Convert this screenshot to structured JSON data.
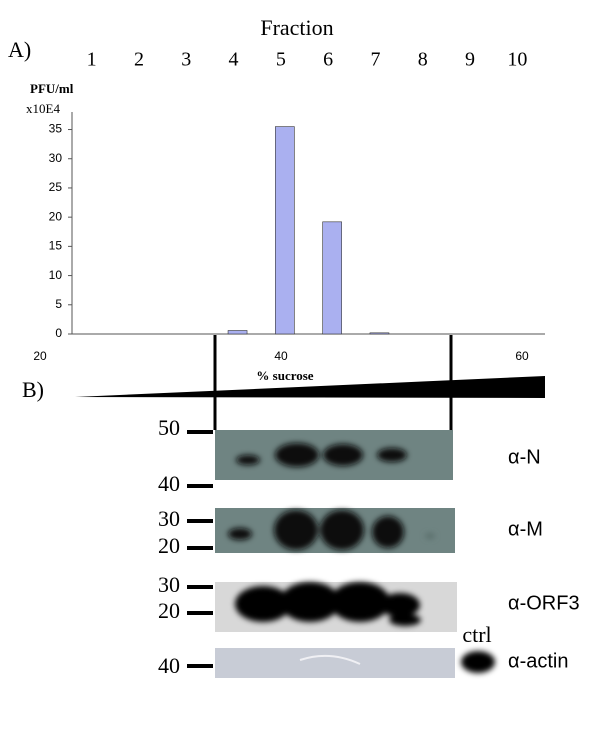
{
  "panel_a": {
    "label": "A)"
  },
  "chart_data": {
    "type": "bar",
    "x_title": "Fraction",
    "y_label": "PFU/ml",
    "y_unit": "x10E4",
    "x2_label": "% sucrose",
    "categories": [
      "1",
      "2",
      "3",
      "4",
      "5",
      "6",
      "7",
      "8",
      "9",
      "10"
    ],
    "values": [
      0,
      0,
      0,
      0.6,
      35.5,
      19.2,
      0.2,
      0,
      0,
      0
    ],
    "color": "#aab0f0",
    "ylim": [
      0,
      38
    ],
    "yticks": [
      0,
      5,
      10,
      15,
      20,
      25,
      30,
      35
    ],
    "x2lim": [
      20,
      60
    ],
    "x2ticks": [
      20,
      40,
      60
    ]
  },
  "panel_b": {
    "label": "B)",
    "blots": [
      {
        "antibody": "α-N",
        "markers": [
          50,
          40
        ]
      },
      {
        "antibody": "α-M",
        "markers": [
          30,
          20
        ]
      },
      {
        "antibody": "α-ORF3",
        "markers": [
          30,
          20
        ]
      },
      {
        "antibody": "α-actin",
        "markers": [
          40
        ]
      }
    ],
    "ctrl": "ctrl"
  }
}
